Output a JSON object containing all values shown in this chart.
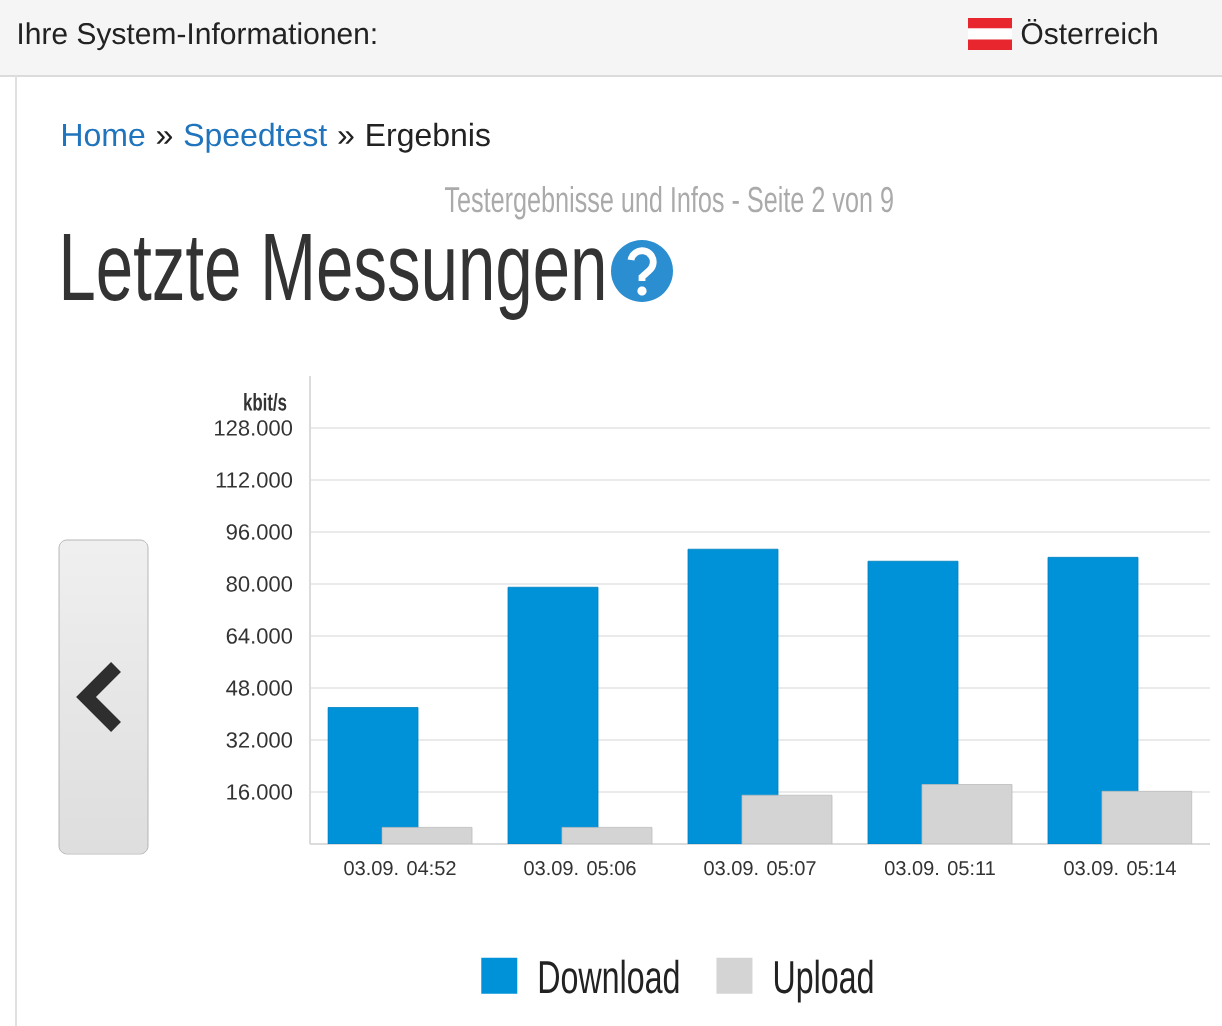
{
  "chart_data": {
    "type": "bar",
    "title": "Letzte Messungen",
    "subtitle": "Testergebnisse und Infos - Seite 2 von 9",
    "ylabel": "kbit/s",
    "categories": [
      "03.09. 04:52",
      "03.09. 05:06",
      "03.09. 05:07",
      "03.09. 05:11",
      "03.09. 05:14"
    ],
    "series": [
      {
        "name": "Download",
        "color": "#0092d8",
        "values": [
          42000,
          79000,
          90700,
          87000,
          88200
        ]
      },
      {
        "name": "Upload",
        "color": "#d4d4d4",
        "values": [
          5100,
          5100,
          15000,
          18300,
          16200
        ]
      }
    ],
    "ylim": [
      0,
      144000
    ],
    "yticks": [
      {
        "value": 16000,
        "label": "16.000"
      },
      {
        "value": 32000,
        "label": "32.000"
      },
      {
        "value": 48000,
        "label": "48.000"
      },
      {
        "value": 64000,
        "label": "64.000"
      },
      {
        "value": 80000,
        "label": "80.000"
      },
      {
        "value": 96000,
        "label": "96.000"
      },
      {
        "value": 112000,
        "label": "112.000"
      },
      {
        "value": 128000,
        "label": "128.000"
      }
    ],
    "grid": "y",
    "legend": "bottom",
    "annotations": [
      "Ihre System-Informationen:",
      "Österreich",
      "Home",
      "»",
      "Speedtest",
      "»",
      "Ergebnis"
    ]
  }
}
